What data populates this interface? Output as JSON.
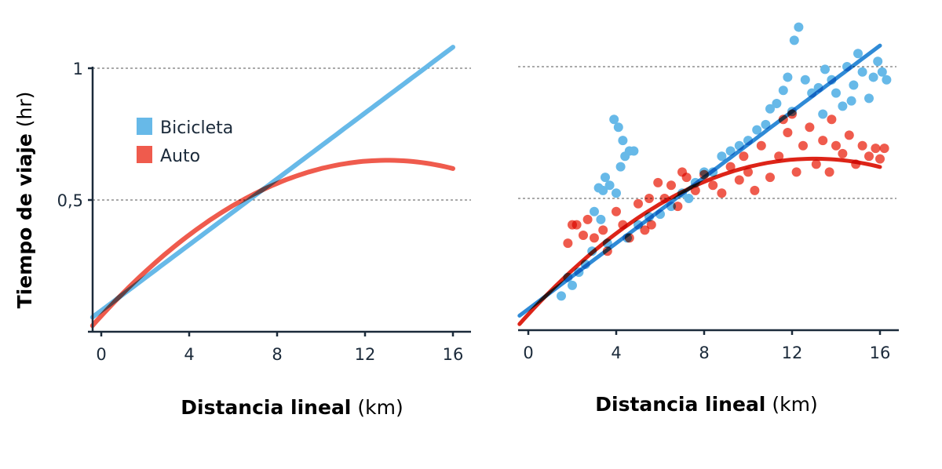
{
  "colors": {
    "bike": "#67b9e8",
    "car": "#ef5b4d",
    "bike_fit": "#2f8ad6",
    "car_fit": "#dd2418",
    "axis": "#1b2a3a"
  },
  "chart_data": [
    {
      "type": "line",
      "xlabel_bold": "Distancia lineal",
      "xlabel_unit": "(km)",
      "ylabel_bold": "Tiempo de viaje",
      "ylabel_unit": "(hr)",
      "xticks": [
        0,
        4,
        8,
        12,
        16
      ],
      "yticks": [
        {
          "v": 0.5,
          "label": "0,5"
        },
        {
          "v": 1,
          "label": "1"
        }
      ],
      "xlim": [
        -0.4,
        17
      ],
      "ylim": [
        0,
        1.1
      ],
      "grid": "horizontal dashed",
      "legend": {
        "placement": "top-left",
        "entries": [
          "Bicicleta",
          "Auto"
        ]
      },
      "series": [
        {
          "name": "Bicicleta",
          "model": "linear",
          "intercept": 0.08,
          "slope": 0.0625,
          "x_range": [
            -0.4,
            16
          ]
        },
        {
          "name": "Auto",
          "model": "quadratic",
          "coef": [
            0.06,
            0.0908,
            -0.00349
          ],
          "x_range": [
            -0.4,
            16
          ]
        }
      ]
    },
    {
      "type": "scatter",
      "xlabel_bold": "Distancia lineal",
      "xlabel_unit": "(km)",
      "xticks": [
        0,
        4,
        8,
        12,
        16
      ],
      "yticks": [
        0.5,
        1
      ],
      "xlim": [
        -0.4,
        17
      ],
      "ylim": [
        0,
        1.1
      ],
      "grid": "horizontal dashed",
      "series": [
        {
          "name": "Bicicleta",
          "points": [
            [
              1.5,
              0.13
            ],
            [
              1.8,
              0.2
            ],
            [
              2.0,
              0.17
            ],
            [
              2.3,
              0.22
            ],
            [
              2.6,
              0.25
            ],
            [
              2.9,
              0.3
            ],
            [
              3.0,
              0.45
            ],
            [
              3.2,
              0.54
            ],
            [
              3.4,
              0.53
            ],
            [
              3.5,
              0.58
            ],
            [
              3.7,
              0.55
            ],
            [
              3.9,
              0.8
            ],
            [
              4.0,
              0.52
            ],
            [
              4.1,
              0.77
            ],
            [
              4.3,
              0.72
            ],
            [
              4.4,
              0.66
            ],
            [
              4.6,
              0.68
            ],
            [
              4.8,
              0.68
            ],
            [
              4.2,
              0.62
            ],
            [
              3.3,
              0.42
            ],
            [
              3.6,
              0.33
            ],
            [
              4.5,
              0.35
            ],
            [
              5,
              0.4
            ],
            [
              5.5,
              0.43
            ],
            [
              6,
              0.44
            ],
            [
              6.5,
              0.47
            ],
            [
              7,
              0.52
            ],
            [
              7.3,
              0.5
            ],
            [
              7.6,
              0.56
            ],
            [
              8,
              0.6
            ],
            [
              8.4,
              0.6
            ],
            [
              8.8,
              0.66
            ],
            [
              9.2,
              0.68
            ],
            [
              9.6,
              0.7
            ],
            [
              10,
              0.72
            ],
            [
              10.4,
              0.76
            ],
            [
              10.8,
              0.78
            ],
            [
              11,
              0.84
            ],
            [
              11.3,
              0.86
            ],
            [
              11.6,
              0.91
            ],
            [
              11.8,
              0.96
            ],
            [
              12.1,
              1.1
            ],
            [
              12.3,
              1.15
            ],
            [
              12.6,
              0.95
            ],
            [
              12.9,
              0.9
            ],
            [
              13.2,
              0.92
            ],
            [
              13.5,
              0.99
            ],
            [
              13.8,
              0.95
            ],
            [
              14,
              0.9
            ],
            [
              14.3,
              0.85
            ],
            [
              14.5,
              1.0
            ],
            [
              14.8,
              0.93
            ],
            [
              15,
              1.05
            ],
            [
              15.2,
              0.98
            ],
            [
              15.5,
              0.88
            ],
            [
              15.7,
              0.96
            ],
            [
              15.9,
              1.02
            ],
            [
              16.1,
              0.98
            ],
            [
              16.3,
              0.95
            ],
            [
              14.7,
              0.87
            ],
            [
              13.4,
              0.82
            ],
            [
              12,
              0.83
            ]
          ],
          "fit": {
            "model": "linear",
            "intercept": 0.08,
            "slope": 0.0625
          }
        },
        {
          "name": "Auto",
          "points": [
            [
              1.8,
              0.33
            ],
            [
              2,
              0.4
            ],
            [
              2.2,
              0.4
            ],
            [
              2.5,
              0.36
            ],
            [
              2.7,
              0.42
            ],
            [
              3,
              0.35
            ],
            [
              3.4,
              0.38
            ],
            [
              3.6,
              0.3
            ],
            [
              4,
              0.45
            ],
            [
              4.3,
              0.4
            ],
            [
              4.6,
              0.35
            ],
            [
              5,
              0.48
            ],
            [
              5.3,
              0.38
            ],
            [
              5.6,
              0.4
            ],
            [
              5.9,
              0.56
            ],
            [
              6.2,
              0.5
            ],
            [
              6.5,
              0.55
            ],
            [
              6.8,
              0.47
            ],
            [
              7.2,
              0.58
            ],
            [
              7.6,
              0.53
            ],
            [
              8,
              0.59
            ],
            [
              8.4,
              0.55
            ],
            [
              8.8,
              0.52
            ],
            [
              9.2,
              0.62
            ],
            [
              9.6,
              0.57
            ],
            [
              10,
              0.6
            ],
            [
              10.3,
              0.53
            ],
            [
              10.6,
              0.7
            ],
            [
              11,
              0.58
            ],
            [
              11.4,
              0.66
            ],
            [
              11.8,
              0.75
            ],
            [
              12.2,
              0.6
            ],
            [
              12.5,
              0.7
            ],
            [
              12.8,
              0.77
            ],
            [
              13.1,
              0.63
            ],
            [
              13.4,
              0.72
            ],
            [
              13.7,
              0.6
            ],
            [
              14,
              0.7
            ],
            [
              14.3,
              0.67
            ],
            [
              14.6,
              0.74
            ],
            [
              14.9,
              0.63
            ],
            [
              15.2,
              0.7
            ],
            [
              15.5,
              0.66
            ],
            [
              15.8,
              0.69
            ],
            [
              16,
              0.65
            ],
            [
              16.2,
              0.69
            ],
            [
              11.6,
              0.8
            ],
            [
              12,
              0.82
            ],
            [
              13.8,
              0.8
            ],
            [
              9.8,
              0.66
            ],
            [
              7,
              0.6
            ],
            [
              5.5,
              0.5
            ]
          ],
          "fit": {
            "model": "quadratic",
            "coef": [
              0.06,
              0.0908,
              -0.00349
            ]
          }
        }
      ]
    }
  ]
}
